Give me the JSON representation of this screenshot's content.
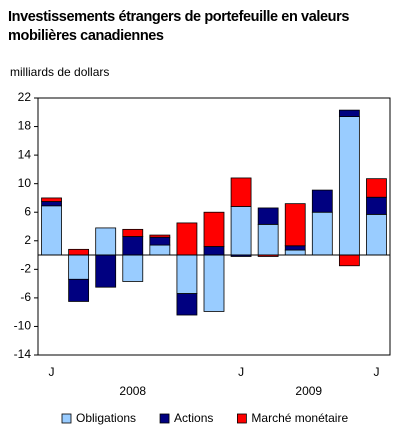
{
  "chart_data": {
    "type": "stacked-bar",
    "title": "Investissements étrangers de portefeuille en valeurs mobilières canadiennes",
    "y_label": "milliards de dollars",
    "categories": [
      "J",
      null,
      null,
      null,
      null,
      null,
      null,
      "J",
      null,
      null,
      null,
      null,
      "J"
    ],
    "x_groups": [
      {
        "label": "2008",
        "categories": [
          0,
          6
        ]
      },
      {
        "label": "2009",
        "categories": [
          7,
          12
        ]
      }
    ],
    "series": [
      {
        "name": "Obligations",
        "color": "#99ccff",
        "values": [
          6.9,
          -3.4,
          3.8,
          -3.7,
          1.4,
          -5.4,
          -7.9,
          6.8,
          4.3,
          0.7,
          6.0,
          19.4,
          5.7
        ]
      },
      {
        "name": "Actions",
        "color": "#000080",
        "values": [
          0.6,
          -3.1,
          -4.5,
          2.6,
          1.1,
          -3.0,
          1.2,
          -0.2,
          2.3,
          0.6,
          3.1,
          0.9,
          2.4
        ]
      },
      {
        "name": "Marché monétaire",
        "color": "#ff0000",
        "values": [
          0.5,
          0.8,
          0,
          1.0,
          0.3,
          4.5,
          4.8,
          4.0,
          -0.2,
          5.9,
          0,
          -1.5,
          2.6
        ]
      }
    ],
    "ylim": [
      -14,
      22
    ],
    "yticks": [
      22,
      18,
      14,
      10,
      6,
      2,
      -2,
      -6,
      -10,
      -14
    ],
    "grid": false
  }
}
